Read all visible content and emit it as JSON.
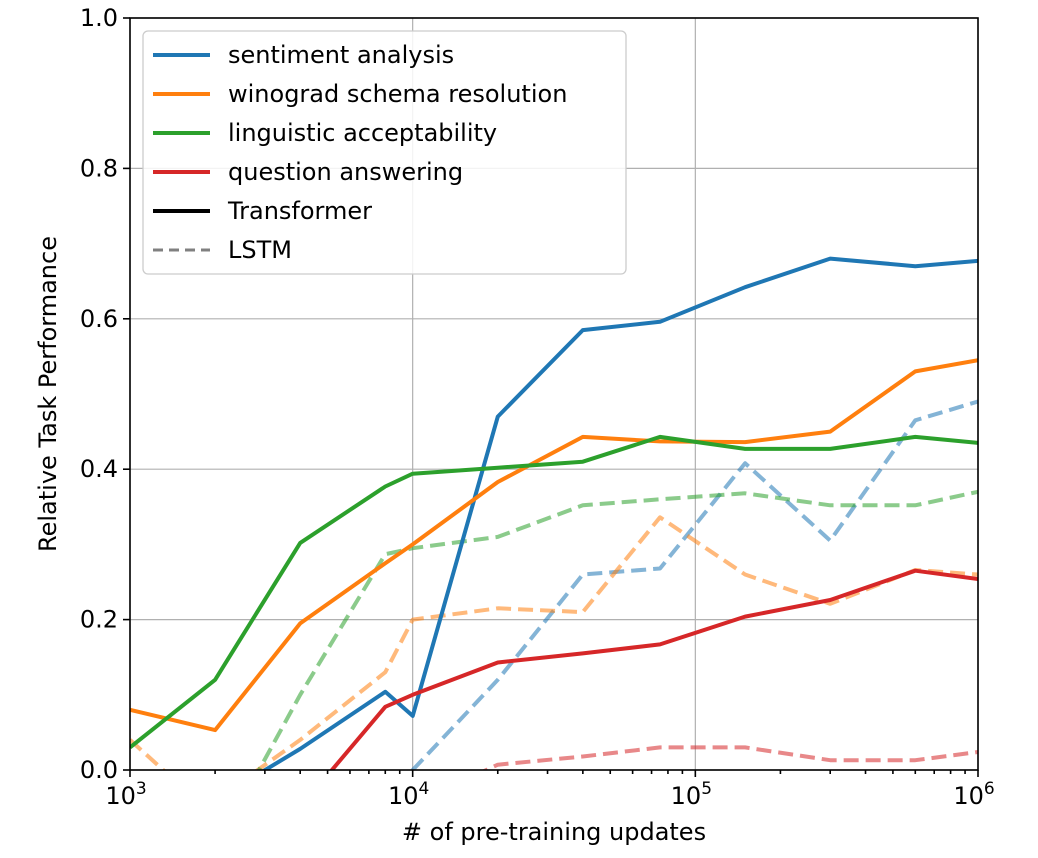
{
  "chart_data": {
    "type": "line",
    "xlabel": "# of pre-training updates",
    "ylabel": "Relative Task Performance",
    "xscale": "log",
    "xlim": [
      1000,
      1000000
    ],
    "ylim": [
      0.0,
      1.0
    ],
    "grid": true,
    "legend_position": "top-left",
    "x_ticks": [
      {
        "value": 1000,
        "base": "10",
        "exp": "3"
      },
      {
        "value": 10000,
        "base": "10",
        "exp": "4"
      },
      {
        "value": 100000,
        "base": "10",
        "exp": "5"
      },
      {
        "value": 1000000,
        "base": "10",
        "exp": "6"
      }
    ],
    "y_ticks": [
      {
        "value": 0.0,
        "label": "0.0"
      },
      {
        "value": 0.2,
        "label": "0.2"
      },
      {
        "value": 0.4,
        "label": "0.4"
      },
      {
        "value": 0.6,
        "label": "0.6"
      },
      {
        "value": 0.8,
        "label": "0.8"
      },
      {
        "value": 1.0,
        "label": "1.0"
      }
    ],
    "legend": [
      {
        "label": "sentiment analysis",
        "color": "#1f77b4",
        "style": "solid"
      },
      {
        "label": "winograd schema resolution",
        "color": "#ff7f0e",
        "style": "solid"
      },
      {
        "label": "linguistic acceptability",
        "color": "#2ca02c",
        "style": "solid"
      },
      {
        "label": "question answering",
        "color": "#d62728",
        "style": "solid"
      },
      {
        "label": "Transformer",
        "color": "#000000",
        "style": "solid"
      },
      {
        "label": "LSTM",
        "color": "#808080",
        "style": "dashed"
      }
    ],
    "series": [
      {
        "task": "sentiment analysis",
        "model": "Transformer",
        "color": "#1f77b4",
        "dashed": false,
        "x": [
          1000,
          2000,
          4000,
          8000,
          10000,
          20000,
          40000,
          75000,
          150000,
          300000,
          600000,
          1000000
        ],
        "y": [
          -0.02,
          -0.04,
          0.028,
          0.104,
          0.072,
          0.47,
          0.585,
          0.596,
          0.642,
          0.68,
          0.67,
          0.677
        ]
      },
      {
        "task": "winograd schema resolution",
        "model": "Transformer",
        "color": "#ff7f0e",
        "dashed": false,
        "x": [
          1000,
          2000,
          4000,
          8000,
          10000,
          20000,
          40000,
          75000,
          150000,
          300000,
          600000,
          1000000
        ],
        "y": [
          0.08,
          0.053,
          0.195,
          0.275,
          0.3,
          0.383,
          0.443,
          0.437,
          0.436,
          0.45,
          0.53,
          0.545
        ]
      },
      {
        "task": "linguistic acceptability",
        "model": "Transformer",
        "color": "#2ca02c",
        "dashed": false,
        "x": [
          1000,
          2000,
          4000,
          8000,
          10000,
          20000,
          40000,
          75000,
          150000,
          300000,
          600000,
          1000000
        ],
        "y": [
          0.03,
          0.12,
          0.302,
          0.377,
          0.394,
          0.402,
          0.41,
          0.443,
          0.427,
          0.427,
          0.443,
          0.435
        ]
      },
      {
        "task": "question answering",
        "model": "Transformer",
        "color": "#d62728",
        "dashed": false,
        "x": [
          4000,
          8000,
          10000,
          20000,
          40000,
          75000,
          150000,
          300000,
          600000,
          1000000
        ],
        "y": [
          -0.05,
          0.084,
          0.1,
          0.143,
          0.155,
          0.167,
          0.204,
          0.226,
          0.265,
          0.254
        ]
      },
      {
        "task": "sentiment analysis",
        "model": "LSTM",
        "color": "#1f77b4",
        "dashed": true,
        "x": [
          8000,
          10000,
          20000,
          40000,
          75000,
          150000,
          300000,
          600000,
          1000000
        ],
        "y": [
          -0.08,
          0.0,
          0.12,
          0.26,
          0.268,
          0.408,
          0.305,
          0.465,
          0.49
        ]
      },
      {
        "task": "winograd schema resolution",
        "model": "LSTM",
        "color": "#ff7f0e",
        "dashed": true,
        "x": [
          1000,
          1500,
          2000,
          4000,
          8000,
          10000,
          20000,
          40000,
          75000,
          150000,
          300000,
          600000,
          1000000
        ],
        "y": [
          0.04,
          -0.02,
          -0.04,
          0.04,
          0.13,
          0.2,
          0.215,
          0.21,
          0.336,
          0.26,
          0.221,
          0.266,
          0.26
        ]
      },
      {
        "task": "linguistic acceptability",
        "model": "LSTM",
        "color": "#2ca02c",
        "dashed": true,
        "x": [
          2500,
          4000,
          8000,
          10000,
          20000,
          40000,
          75000,
          150000,
          300000,
          600000,
          1000000
        ],
        "y": [
          -0.04,
          0.1,
          0.287,
          0.295,
          0.31,
          0.352,
          0.36,
          0.368,
          0.352,
          0.352,
          0.37
        ]
      },
      {
        "task": "question answering",
        "model": "LSTM",
        "color": "#d62728",
        "dashed": true,
        "x": [
          14000,
          20000,
          40000,
          75000,
          150000,
          300000,
          600000,
          1000000
        ],
        "y": [
          -0.02,
          0.007,
          0.018,
          0.03,
          0.03,
          0.013,
          0.013,
          0.024
        ]
      }
    ]
  }
}
